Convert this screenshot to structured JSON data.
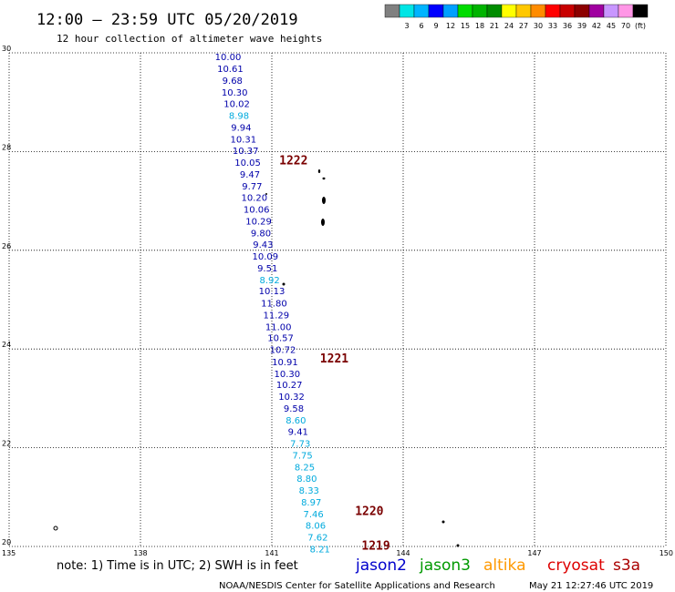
{
  "header": {
    "title": "12:00 – 23:59 UTC 05/20/2019",
    "subtitle": "12 hour collection of altimeter wave heights"
  },
  "legend": {
    "unit": "(ft)",
    "swatches": [
      {
        "label": "",
        "color": "#808080"
      },
      {
        "label": "3",
        "color": "#00e5e5"
      },
      {
        "label": "6",
        "color": "#00b4ff"
      },
      {
        "label": "9",
        "color": "#0000ff"
      },
      {
        "label": "12",
        "color": "#00a0ff"
      },
      {
        "label": "15",
        "color": "#00dc00"
      },
      {
        "label": "18",
        "color": "#00b400"
      },
      {
        "label": "21",
        "color": "#008c00"
      },
      {
        "label": "24",
        "color": "#ffff00"
      },
      {
        "label": "27",
        "color": "#ffc800"
      },
      {
        "label": "30",
        "color": "#ff8c00"
      },
      {
        "label": "33",
        "color": "#ff0000"
      },
      {
        "label": "36",
        "color": "#c80000"
      },
      {
        "label": "39",
        "color": "#8c0000"
      },
      {
        "label": "42",
        "color": "#a000a0"
      },
      {
        "label": "45",
        "color": "#c896ff"
      },
      {
        "label": "70",
        "color": "#ff96e6"
      },
      {
        "label": "",
        "color": "#000000"
      }
    ]
  },
  "note": "note: 1) Time is in UTC; 2) SWH is in feet",
  "satellites": [
    {
      "name": "jason2",
      "color": "#0000cc"
    },
    {
      "name": "jason3",
      "color": "#009900"
    },
    {
      "name": "altika",
      "color": "#ff9900"
    },
    {
      "name": "cryosat",
      "color": "#dd0000"
    },
    {
      "name": "s3a",
      "color": "#aa0000"
    }
  ],
  "footer": {
    "center": "NOAA/NESDIS Center for Satellite Applications and Research",
    "timestamp": "May 21 12:27:46 UTC 2019"
  },
  "chart_data": {
    "type": "scatter",
    "xlim": [
      135,
      150
    ],
    "ylim": [
      20,
      30
    ],
    "x_ticks": [
      135,
      138,
      141,
      144,
      147,
      150
    ],
    "y_ticks": [
      20,
      22,
      24,
      26,
      28,
      30
    ],
    "x_tick_labels": [
      "135",
      "138",
      "141",
      "144",
      "147",
      "150"
    ],
    "y_tick_labels": [
      "20",
      "22",
      "24",
      "26",
      "28",
      "30"
    ],
    "grid": true,
    "colors": {
      "dark_blue": "#0000aa",
      "cyan": "#00aadd",
      "time_label": "#7a0000"
    },
    "time_labels": [
      {
        "text": "1222",
        "x": 141.17,
        "y": 27.83
      },
      {
        "text": "1221",
        "x": 142.1,
        "y": 23.82
      },
      {
        "text": "1220",
        "x": 142.9,
        "y": 20.73
      },
      {
        "text": "1219",
        "x": 143.05,
        "y": 20.03
      }
    ],
    "points": [
      {
        "x": 140.0,
        "y": 29.93,
        "value": "10.00",
        "c": "dark_blue"
      },
      {
        "x": 140.05,
        "y": 29.69,
        "value": "10.61",
        "c": "dark_blue"
      },
      {
        "x": 140.1,
        "y": 29.45,
        "value": "9.68",
        "c": "dark_blue"
      },
      {
        "x": 140.15,
        "y": 29.21,
        "value": "10.30",
        "c": "dark_blue"
      },
      {
        "x": 140.2,
        "y": 28.98,
        "value": "10.02",
        "c": "dark_blue"
      },
      {
        "x": 140.25,
        "y": 28.74,
        "value": "8.98",
        "c": "cyan"
      },
      {
        "x": 140.3,
        "y": 28.5,
        "value": "9.94",
        "c": "dark_blue"
      },
      {
        "x": 140.35,
        "y": 28.26,
        "value": "10.31",
        "c": "dark_blue"
      },
      {
        "x": 140.4,
        "y": 28.03,
        "value": "10.37",
        "c": "dark_blue"
      },
      {
        "x": 140.45,
        "y": 27.79,
        "value": "10.05",
        "c": "dark_blue"
      },
      {
        "x": 140.5,
        "y": 27.55,
        "value": "9.47",
        "c": "dark_blue"
      },
      {
        "x": 140.55,
        "y": 27.31,
        "value": "9.77",
        "c": "dark_blue"
      },
      {
        "x": 140.6,
        "y": 27.08,
        "value": "10.20",
        "c": "dark_blue"
      },
      {
        "x": 140.65,
        "y": 26.84,
        "value": "10.06",
        "c": "dark_blue"
      },
      {
        "x": 140.7,
        "y": 26.6,
        "value": "10.29",
        "c": "dark_blue"
      },
      {
        "x": 140.75,
        "y": 26.36,
        "value": "9.80",
        "c": "dark_blue"
      },
      {
        "x": 140.8,
        "y": 26.13,
        "value": "9.43",
        "c": "dark_blue"
      },
      {
        "x": 140.85,
        "y": 25.89,
        "value": "10.09",
        "c": "dark_blue"
      },
      {
        "x": 140.9,
        "y": 25.65,
        "value": "9.51",
        "c": "dark_blue"
      },
      {
        "x": 140.95,
        "y": 25.41,
        "value": "8.92",
        "c": "cyan"
      },
      {
        "x": 141.0,
        "y": 25.18,
        "value": "10.13",
        "c": "dark_blue"
      },
      {
        "x": 141.05,
        "y": 24.94,
        "value": "11.80",
        "c": "dark_blue"
      },
      {
        "x": 141.1,
        "y": 24.7,
        "value": "11.29",
        "c": "dark_blue"
      },
      {
        "x": 141.15,
        "y": 24.46,
        "value": "11.00",
        "c": "dark_blue"
      },
      {
        "x": 141.2,
        "y": 24.23,
        "value": "10.57",
        "c": "dark_blue"
      },
      {
        "x": 141.25,
        "y": 23.99,
        "value": "10.72",
        "c": "dark_blue"
      },
      {
        "x": 141.3,
        "y": 23.75,
        "value": "10.91",
        "c": "dark_blue"
      },
      {
        "x": 141.35,
        "y": 23.51,
        "value": "10.30",
        "c": "dark_blue"
      },
      {
        "x": 141.4,
        "y": 23.28,
        "value": "10.27",
        "c": "dark_blue"
      },
      {
        "x": 141.45,
        "y": 23.04,
        "value": "10.32",
        "c": "dark_blue"
      },
      {
        "x": 141.5,
        "y": 22.8,
        "value": "9.58",
        "c": "dark_blue"
      },
      {
        "x": 141.55,
        "y": 22.56,
        "value": "8.60",
        "c": "cyan"
      },
      {
        "x": 141.6,
        "y": 22.33,
        "value": "9.41",
        "c": "dark_blue"
      },
      {
        "x": 141.65,
        "y": 22.09,
        "value": "7.73",
        "c": "cyan"
      },
      {
        "x": 141.7,
        "y": 21.85,
        "value": "7.75",
        "c": "cyan"
      },
      {
        "x": 141.75,
        "y": 21.61,
        "value": "8.25",
        "c": "cyan"
      },
      {
        "x": 141.8,
        "y": 21.38,
        "value": "8.80",
        "c": "cyan"
      },
      {
        "x": 141.85,
        "y": 21.14,
        "value": "8.33",
        "c": "cyan"
      },
      {
        "x": 141.9,
        "y": 20.9,
        "value": "8.97",
        "c": "cyan"
      },
      {
        "x": 141.95,
        "y": 20.66,
        "value": "7.46",
        "c": "cyan"
      },
      {
        "x": 142.0,
        "y": 20.43,
        "value": "8.06",
        "c": "cyan"
      },
      {
        "x": 142.05,
        "y": 20.19,
        "value": "7.62",
        "c": "cyan"
      },
      {
        "x": 142.1,
        "y": 19.95,
        "value": "8.21",
        "c": "cyan"
      }
    ]
  }
}
